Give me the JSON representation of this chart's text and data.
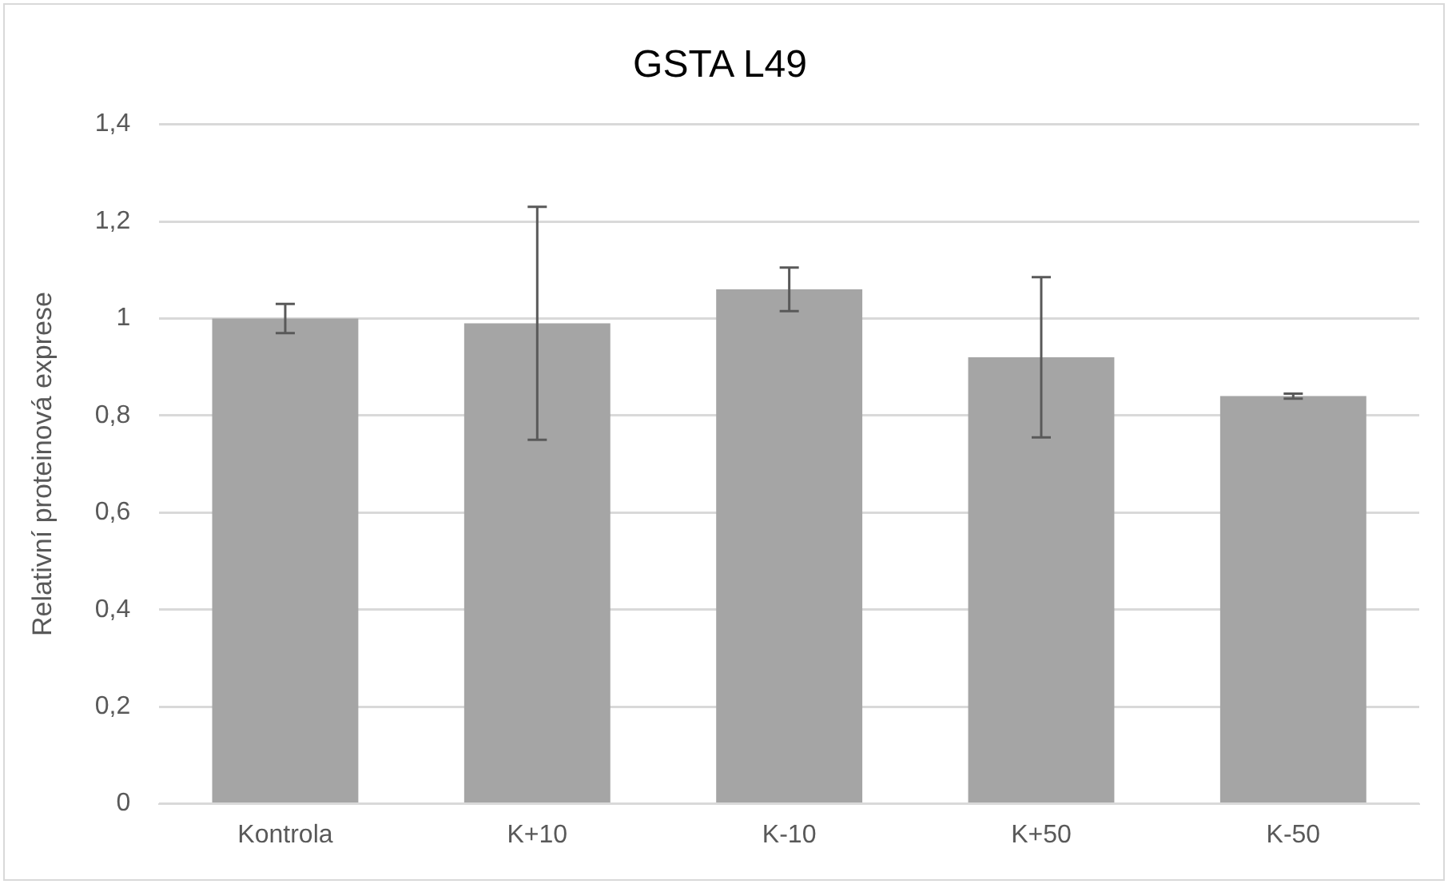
{
  "chart_data": {
    "type": "bar",
    "title": "GSTA L49",
    "ylabel": "Relativní proteinová exprese",
    "categories": [
      "Kontrola",
      "K+10",
      "K-10",
      "K+50",
      "K-50"
    ],
    "values": [
      1.0,
      0.99,
      1.06,
      0.92,
      0.84
    ],
    "errors": [
      0.03,
      0.24,
      0.045,
      0.165,
      0.005
    ],
    "color": "#a5a5a5",
    "ylim": [
      0,
      1.4
    ],
    "yticks": [
      {
        "value": 0,
        "label": "0"
      },
      {
        "value": 0.2,
        "label": "0,2"
      },
      {
        "value": 0.4,
        "label": "0,4"
      },
      {
        "value": 0.6,
        "label": "0,6"
      },
      {
        "value": 0.8,
        "label": "0,8"
      },
      {
        "value": 1,
        "label": "1"
      },
      {
        "value": 1.2,
        "label": "1,2"
      },
      {
        "value": 1.4,
        "label": "1,4"
      }
    ],
    "grid": "y",
    "legend": false
  }
}
